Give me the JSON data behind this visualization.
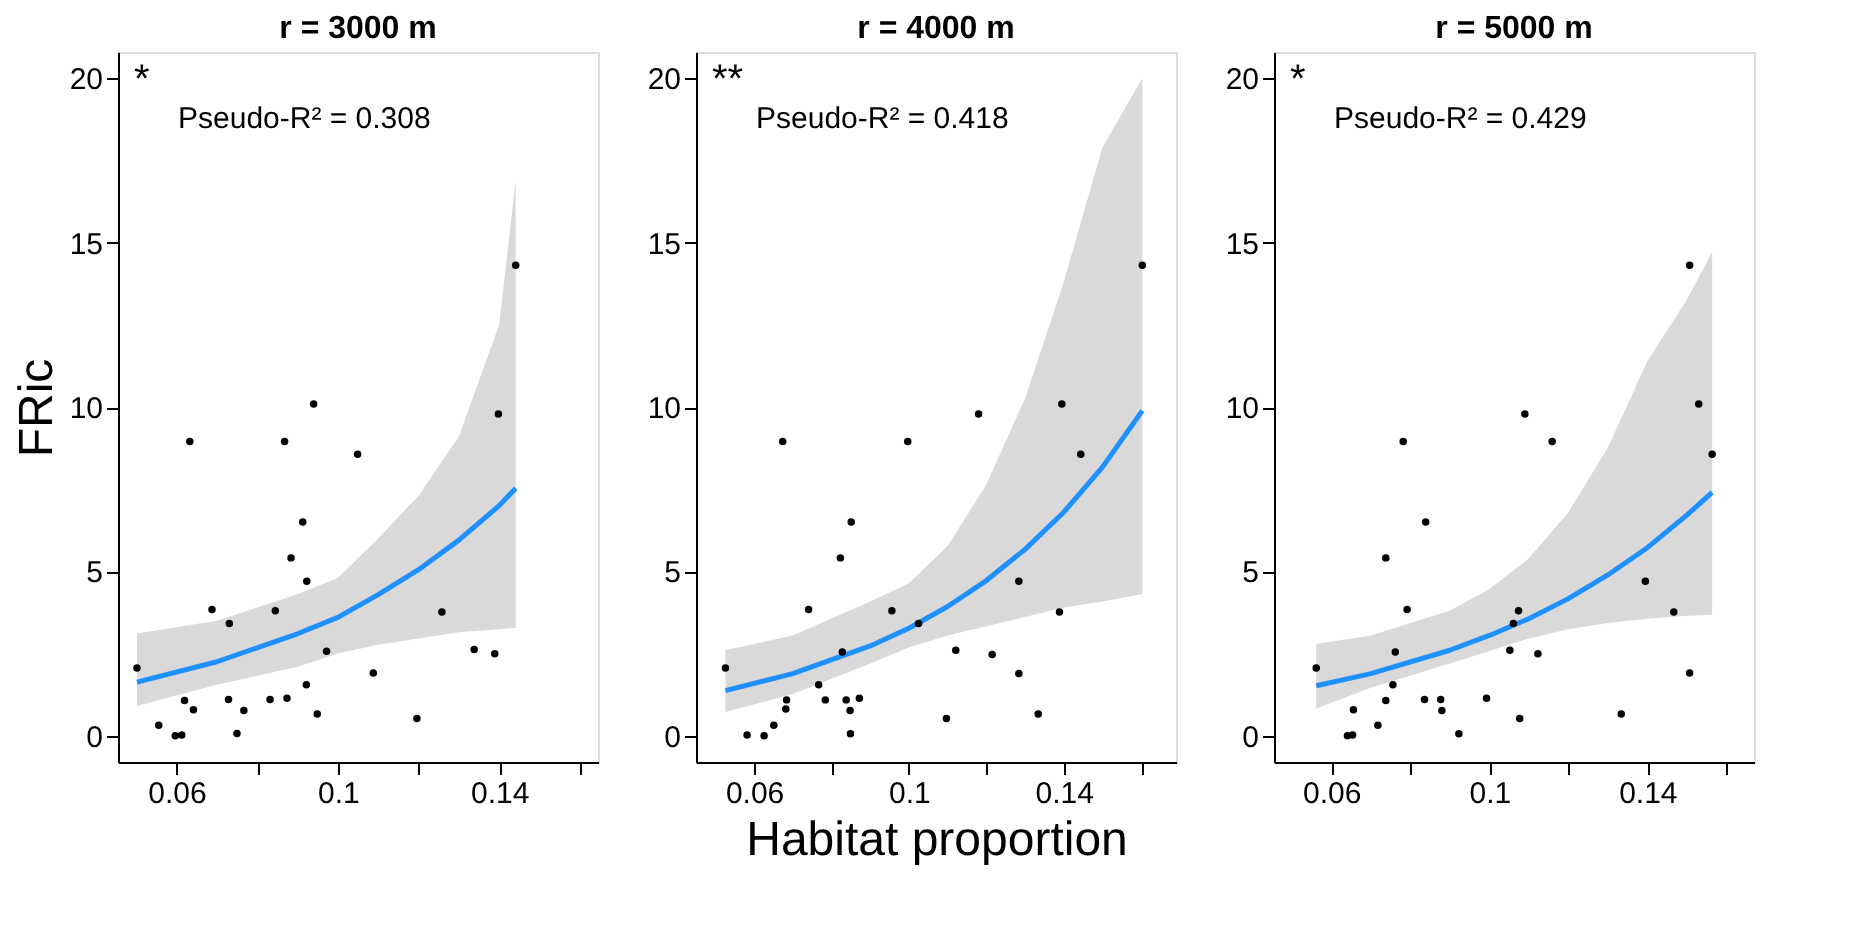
{
  "chart_data": [
    {
      "type": "scatter",
      "title": "r = 3000 m",
      "ylabel": "FRic",
      "xlim": [
        0.0455,
        0.1645
      ],
      "ylim": [
        -0.8,
        20.8
      ],
      "xticks": [
        0.06,
        {
          "value": 0.08,
          "label": null
        },
        0.1,
        {
          "value": 0.12,
          "label": null
        },
        0.14,
        {
          "value": 0.16,
          "label": null
        }
      ],
      "yticks": [
        0,
        5,
        10,
        15,
        20
      ],
      "grid": false,
      "marker": "circle",
      "annotations": [
        "*",
        "Pseudo-R² = 0.308"
      ],
      "series": [
        {
          "type": "line",
          "marker": "none",
          "color": "#1e90ff",
          "x": [
            0.0502,
            0.07,
            0.09,
            0.1,
            0.11,
            0.12,
            0.13,
            0.14,
            0.1441
          ],
          "values": [
            1.63,
            2.25,
            3.1,
            3.6,
            4.29,
            5.05,
            5.95,
            7.0,
            7.53
          ],
          "lower": [
            0.9,
            1.55,
            2.1,
            2.5,
            2.77,
            2.96,
            3.15,
            3.24,
            3.28
          ],
          "upper": [
            3.11,
            3.5,
            4.3,
            4.8,
            6.0,
            7.3,
            9.1,
            12.5,
            16.9
          ]
        },
        {
          "color": "#000000",
          "x": [
            0.0502,
            0.0556,
            0.0597,
            0.0613,
            0.0633,
            0.062,
            0.0642,
            0.0688,
            0.0731,
            0.0729,
            0.075,
            0.0767,
            0.0832,
            0.0845,
            0.0868,
            0.0874,
            0.0884,
            0.0913,
            0.0923,
            0.0922,
            0.094,
            0.0949,
            0.0972,
            0.1049,
            0.1088,
            0.1196,
            0.1258,
            0.1338,
            0.1389,
            0.1398,
            0.1441
          ],
          "values": [
            2.06,
            0.32,
            0.0,
            0.02,
            8.95,
            1.07,
            0.79,
            3.84,
            3.41,
            1.1,
            0.07,
            0.77,
            1.1,
            3.8,
            8.95,
            1.14,
            5.41,
            6.5,
            4.7,
            1.55,
            10.09,
            0.66,
            2.57,
            8.56,
            1.91,
            0.52,
            3.76,
            2.62,
            2.49,
            9.79,
            14.31
          ]
        }
      ]
    },
    {
      "type": "scatter",
      "title": "r = 4000 m",
      "xlabel": "Habitat proportion",
      "xlim": [
        0.045,
        0.169
      ],
      "ylim": [
        -0.8,
        20.8
      ],
      "xticks": [
        0.06,
        {
          "value": 0.08,
          "label": null
        },
        0.1,
        {
          "value": 0.12,
          "label": null
        },
        0.14,
        {
          "value": 0.16,
          "label": null
        }
      ],
      "yticks": [
        0,
        5,
        10,
        15,
        20
      ],
      "grid": false,
      "marker": "circle",
      "annotations": [
        "**",
        "Pseudo-R² = 0.418"
      ],
      "series": [
        {
          "type": "line",
          "marker": "none",
          "color": "#1e90ff",
          "x": [
            0.0526,
            0.07,
            0.09,
            0.1,
            0.11,
            0.12,
            0.13,
            0.14,
            0.15,
            0.1603
          ],
          "values": [
            1.37,
            1.89,
            2.73,
            3.27,
            3.93,
            4.72,
            5.67,
            6.8,
            8.17,
            9.89
          ],
          "lower": [
            0.72,
            1.27,
            2.2,
            2.68,
            3.05,
            3.33,
            3.61,
            3.9,
            4.08,
            4.31
          ],
          "upper": [
            2.6,
            3.05,
            4.08,
            4.64,
            5.77,
            7.64,
            10.26,
            13.8,
            17.9,
            20.0
          ]
        },
        {
          "color": "#000000",
          "x": [
            0.0526,
            0.0582,
            0.0626,
            0.0651,
            0.0674,
            0.0684,
            0.0682,
            0.0741,
            0.0767,
            0.0784,
            0.0823,
            0.0828,
            0.0838,
            0.0848,
            0.0851,
            0.0849,
            0.0872,
            0.0956,
            0.0997,
            0.1025,
            0.1097,
            0.1121,
            0.118,
            0.1215,
            0.1284,
            0.1284,
            0.1334,
            0.1389,
            0.1395,
            0.1444,
            0.1603
          ],
          "values": [
            2.06,
            0.02,
            0.0,
            0.32,
            8.95,
            1.09,
            0.81,
            3.84,
            1.55,
            1.09,
            5.41,
            2.55,
            1.09,
            0.77,
            6.5,
            0.06,
            1.14,
            3.8,
            8.95,
            3.41,
            0.52,
            2.6,
            9.79,
            2.47,
            4.7,
            1.89,
            0.66,
            3.76,
            10.09,
            8.56,
            14.31
          ]
        }
      ]
    },
    {
      "type": "scatter",
      "title": "r = 5000 m",
      "xlim": [
        0.0455,
        0.167
      ],
      "ylim": [
        -0.8,
        20.8
      ],
      "xticks": [
        0.06,
        {
          "value": 0.08,
          "label": null
        },
        0.1,
        {
          "value": 0.12,
          "label": null
        },
        0.14,
        {
          "value": 0.16,
          "label": null
        }
      ],
      "yticks": [
        0,
        5,
        10,
        15,
        20
      ],
      "grid": false,
      "marker": "circle",
      "annotations": [
        "*",
        "Pseudo-R² = 0.429"
      ],
      "series": [
        {
          "type": "line",
          "marker": "none",
          "color": "#1e90ff",
          "x": [
            0.0562,
            0.07,
            0.09,
            0.1,
            0.11,
            0.12,
            0.13,
            0.14,
            0.15,
            0.1564
          ],
          "values": [
            1.52,
            1.89,
            2.6,
            3.05,
            3.56,
            4.17,
            4.89,
            5.72,
            6.71,
            7.4
          ],
          "lower": [
            0.83,
            1.46,
            2.2,
            2.58,
            2.96,
            3.24,
            3.43,
            3.56,
            3.65,
            3.67
          ],
          "upper": [
            2.79,
            3.05,
            3.8,
            4.46,
            5.39,
            6.8,
            8.76,
            11.39,
            13.26,
            14.72
          ]
        },
        {
          "color": "#000000",
          "x": [
            0.0562,
            0.0641,
            0.0654,
            0.0656,
            0.0718,
            0.0738,
            0.0738,
            0.0756,
            0.0762,
            0.0782,
            0.0792,
            0.0836,
            0.0839,
            0.0877,
            0.088,
            0.0923,
            0.0993,
            0.1052,
            0.1061,
            0.1074,
            0.1077,
            0.109,
            0.1123,
            0.1159,
            0.1334,
            0.1395,
            0.1467,
            0.1507,
            0.1507,
            0.153,
            0.1564
          ],
          "values": [
            2.06,
            0.0,
            0.02,
            0.79,
            0.32,
            1.07,
            5.41,
            1.55,
            2.55,
            8.95,
            3.84,
            1.1,
            6.5,
            1.1,
            0.77,
            0.06,
            1.14,
            2.6,
            3.41,
            3.8,
            0.52,
            9.79,
            2.49,
            8.95,
            0.66,
            4.7,
            3.76,
            1.91,
            14.31,
            10.09,
            8.56
          ]
        }
      ]
    }
  ]
}
